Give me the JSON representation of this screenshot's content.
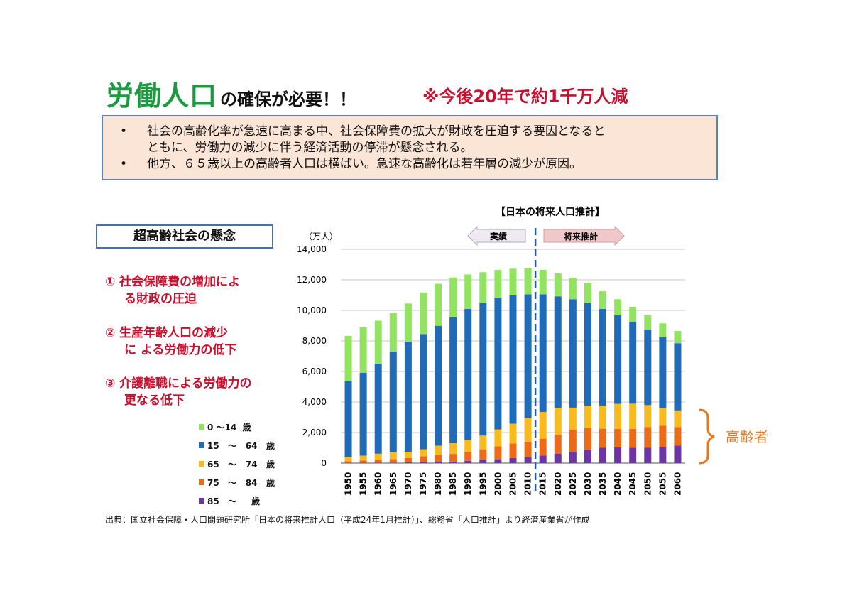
{
  "title": {
    "main": "労働人口",
    "suffix": "の確保が必要！！",
    "note": "※今後20年で約1千万人減"
  },
  "summary": {
    "bullets": [
      "社会の高齢化率が急速に高まる中、社会保障費の拡大が財政を圧迫する要因となると",
      "ともに、労働力の減少に伴う経済活動の停滞が懸念される。",
      "他方、６５歳以上の高齢者人口は横ばい。急速な高齢化は若年層の減少が原因。"
    ]
  },
  "concerns": {
    "heading": "超高齢社会の懸念",
    "items": [
      {
        "num": "①",
        "line1": "社会保障費の増加によ",
        "line2": "る財政の圧迫"
      },
      {
        "num": "②",
        "line1": "生産年齢人口の減少",
        "line2": "に よる労働力の低下"
      },
      {
        "num": "③",
        "line1": "介護離職による労働力の",
        "line2": "更なる低下"
      }
    ]
  },
  "legend": [
    {
      "label": "0 〜14  歳",
      "color": "#92e35f"
    },
    {
      "label": "15   〜   64   歳",
      "color": "#1f6bb8"
    },
    {
      "label": "65   〜   74   歳",
      "color": "#f7bb1e"
    },
    {
      "label": "75   〜   84   歳",
      "color": "#ec6a18"
    },
    {
      "label": "85   〜     歳",
      "color": "#6b35a4"
    }
  ],
  "annotations": {
    "actual": "実績",
    "forecast": "将来推計",
    "elderly": "高齢者"
  },
  "source": "出典：国立社会保障・人口問題研究所「日本の将来推計人口（平成24年1月推計）」、総務省「人口推計」より経済産業省が作成",
  "chart_data": {
    "type": "bar",
    "stacked": true,
    "title": "【日本の将来人口推計】",
    "ylabel": "（万人）",
    "ylim": [
      0,
      14000
    ],
    "yticks": [
      0,
      2000,
      4000,
      6000,
      8000,
      10000,
      12000,
      14000
    ],
    "ytick_labels": [
      "0",
      "2,000",
      "4,000",
      "6,000",
      "8,000",
      "10,000",
      "12,000",
      "14,000"
    ],
    "grid": true,
    "divider_after": "2010",
    "categories": [
      "1950",
      "1955",
      "1960",
      "1965",
      "1970",
      "1975",
      "1980",
      "1985",
      "1990",
      "1995",
      "2000",
      "2005",
      "2010",
      "2015",
      "2020",
      "2025",
      "2030",
      "2035",
      "2040",
      "2045",
      "2050",
      "2055",
      "2060"
    ],
    "series": [
      {
        "name": "85   〜     歳",
        "color": "#6b35a4",
        "values": [
          14,
          17,
          25,
          35,
          50,
          70,
          90,
          100,
          150,
          200,
          250,
          330,
          400,
          500,
          620,
          730,
          850,
          1000,
          1030,
          1010,
          1000,
          1050,
          1150
        ]
      },
      {
        "name": "75   〜   84   歳",
        "color": "#ec6a18",
        "values": [
          110,
          150,
          190,
          230,
          280,
          380,
          450,
          500,
          600,
          700,
          850,
          950,
          1000,
          1100,
          1250,
          1450,
          1450,
          1250,
          1200,
          1230,
          1350,
          1400,
          1200
        ]
      },
      {
        "name": "65   〜   74   歳",
        "color": "#f7bb1e",
        "values": [
          290,
          320,
          400,
          430,
          410,
          450,
          600,
          700,
          750,
          900,
          1100,
          1300,
          1550,
          1750,
          1750,
          1450,
          1450,
          1500,
          1650,
          1650,
          1450,
          1150,
          1100
        ]
      },
      {
        "name": "15   〜   64   歳",
        "color": "#1f6bb8",
        "values": [
          4960,
          5430,
          5900,
          6600,
          7200,
          7550,
          7850,
          8250,
          8600,
          8700,
          8600,
          8400,
          8100,
          7700,
          7300,
          7100,
          6750,
          6350,
          5800,
          5350,
          4950,
          4650,
          4400
        ]
      },
      {
        "name": "0 〜14  歳",
        "color": "#92e35f",
        "values": [
          2950,
          2990,
          2810,
          2550,
          2510,
          2720,
          2750,
          2600,
          2250,
          2000,
          1850,
          1750,
          1700,
          1600,
          1500,
          1400,
          1300,
          1150,
          1050,
          1000,
          950,
          900,
          800
        ]
      }
    ]
  }
}
